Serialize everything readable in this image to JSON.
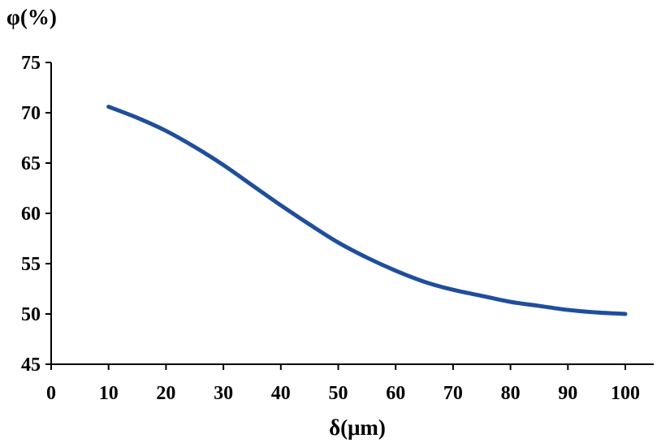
{
  "chart_data": {
    "type": "line",
    "title": "",
    "xlabel": "δ(μm)",
    "ylabel": "φ(%)",
    "xlim": [
      0,
      100
    ],
    "ylim": [
      45,
      75
    ],
    "xticks": [
      0,
      10,
      20,
      30,
      40,
      50,
      60,
      70,
      80,
      90,
      100
    ],
    "yticks": [
      45,
      50,
      55,
      60,
      65,
      70,
      75
    ],
    "grid": false,
    "series": [
      {
        "color": "#1f4e9c",
        "x": [
          10,
          15,
          20,
          25,
          30,
          35,
          40,
          45,
          50,
          55,
          60,
          65,
          70,
          75,
          80,
          85,
          90,
          95,
          100
        ],
        "y": [
          70.6,
          69.5,
          68.2,
          66.6,
          64.8,
          62.8,
          60.8,
          58.9,
          57.1,
          55.6,
          54.3,
          53.2,
          52.4,
          51.8,
          51.2,
          50.8,
          50.4,
          50.15,
          50.0
        ]
      }
    ]
  }
}
